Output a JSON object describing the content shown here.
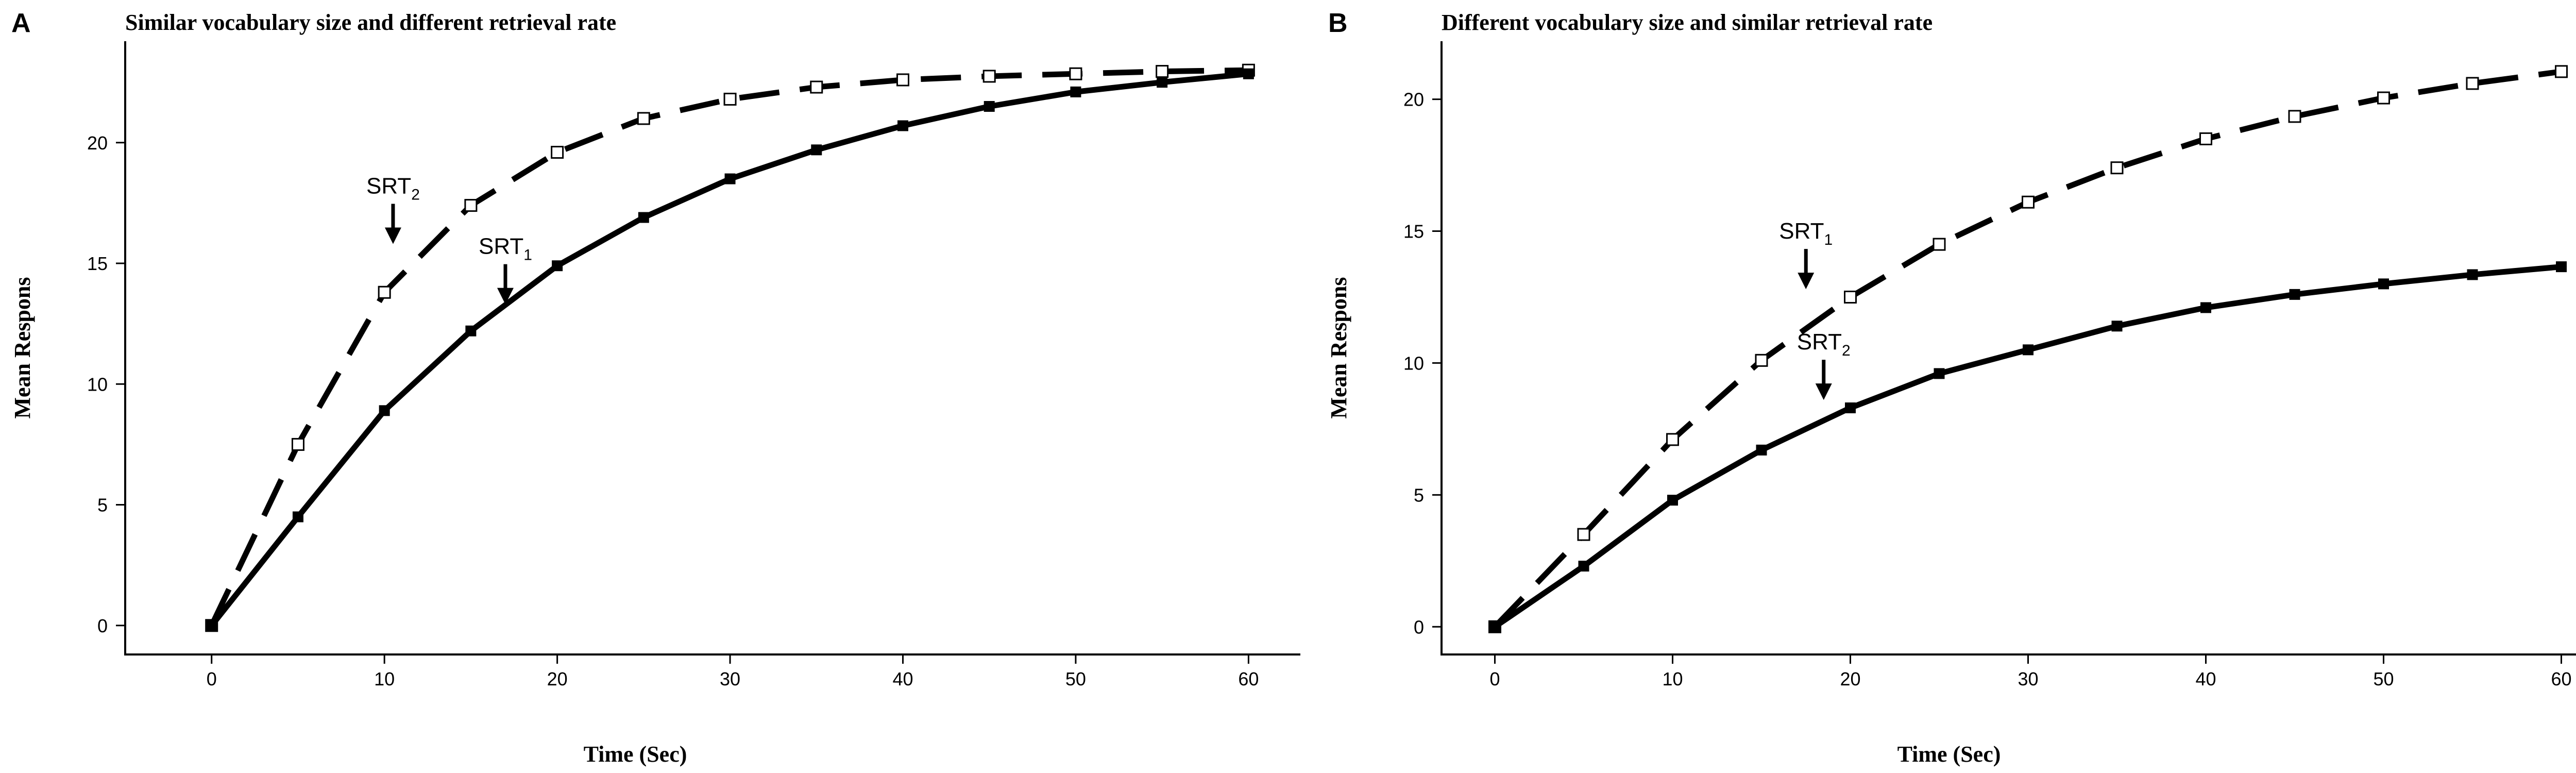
{
  "chart_data": [
    {
      "type": "line",
      "panel_label": "A",
      "title": "Similar vocabulary size and different retrieval rate",
      "xlabel": "Time (Sec)",
      "ylabel": "Mean Respons",
      "xlim": [
        -5,
        63
      ],
      "ylim": [
        -1.2,
        24.2
      ],
      "xticks": [
        0,
        10,
        20,
        30,
        40,
        50,
        60
      ],
      "yticks": [
        0,
        5,
        10,
        15,
        20
      ],
      "grid": false,
      "legend": "none",
      "x": [
        0,
        5,
        10,
        15,
        20,
        25,
        30,
        35,
        40,
        45,
        50,
        55,
        60
      ],
      "series": [
        {
          "style": "dashed",
          "marker": "open-square",
          "color": "#000000",
          "values": [
            0,
            7.5,
            13.8,
            17.4,
            19.6,
            21.0,
            21.8,
            22.3,
            22.6,
            22.75,
            22.85,
            22.95,
            23.0
          ]
        },
        {
          "style": "solid",
          "marker": "filled-square",
          "color": "#000000",
          "values": [
            0,
            4.5,
            8.9,
            12.2,
            14.9,
            16.9,
            18.5,
            19.7,
            20.7,
            21.5,
            22.1,
            22.5,
            22.85
          ]
        }
      ],
      "annotations": [
        {
          "text": "SRT",
          "sub": "2",
          "x": 10.5,
          "y": 15.8
        },
        {
          "text": "SRT",
          "sub": "1",
          "x": 17.0,
          "y": 13.3
        }
      ]
    },
    {
      "type": "line",
      "panel_label": "B",
      "title": "Different vocabulary size and similar retrieval rate",
      "xlabel": "Time (Sec)",
      "ylabel": "Mean Respons",
      "xlim": [
        -3,
        63
      ],
      "ylim": [
        -1.05,
        22.2
      ],
      "xticks": [
        0,
        10,
        20,
        30,
        40,
        50,
        60
      ],
      "yticks": [
        0,
        5,
        10,
        15,
        20
      ],
      "grid": false,
      "legend": "none",
      "x": [
        0,
        5,
        10,
        15,
        20,
        25,
        30,
        35,
        40,
        45,
        50,
        55,
        60
      ],
      "series": [
        {
          "style": "dashed",
          "marker": "open-square",
          "color": "#000000",
          "values": [
            0,
            3.5,
            7.1,
            10.1,
            12.5,
            14.5,
            16.1,
            17.4,
            18.5,
            19.35,
            20.05,
            20.6,
            21.05
          ]
        },
        {
          "style": "solid",
          "marker": "filled-square",
          "color": "#000000",
          "values": [
            0,
            2.3,
            4.8,
            6.7,
            8.3,
            9.6,
            10.5,
            11.4,
            12.1,
            12.6,
            13.0,
            13.35,
            13.65
          ]
        }
      ],
      "annotations": [
        {
          "text": "SRT",
          "sub": "1",
          "x": 17.5,
          "y": 12.8
        },
        {
          "text": "SRT",
          "sub": "2",
          "x": 18.5,
          "y": 8.6
        }
      ]
    }
  ]
}
